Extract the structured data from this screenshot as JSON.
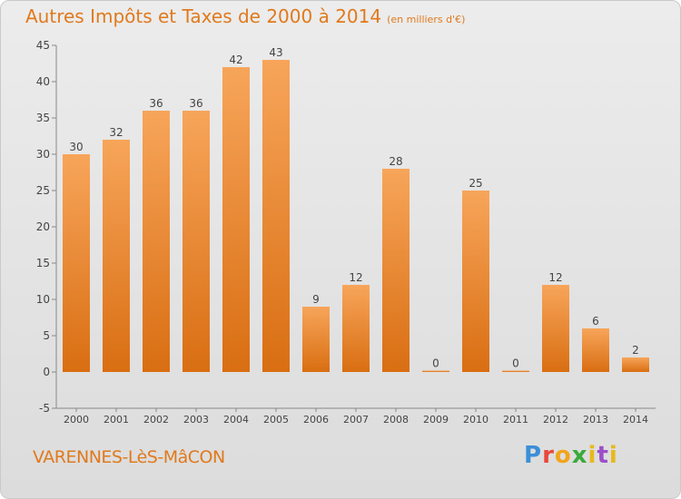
{
  "chart_data": {
    "type": "bar",
    "title": "Autres Impôts et Taxes de 2000 à 2014",
    "subtitle": "(en milliers d'€)",
    "categories": [
      "2000",
      "2001",
      "2002",
      "2003",
      "2004",
      "2005",
      "2006",
      "2007",
      "2008",
      "2009",
      "2010",
      "2011",
      "2012",
      "2013",
      "2014"
    ],
    "values": [
      30,
      32,
      36,
      36,
      42,
      43,
      9,
      12,
      28,
      0,
      25,
      0,
      12,
      6,
      2
    ],
    "ylim": [
      -5,
      45
    ],
    "yticks": [
      -5,
      0,
      5,
      10,
      15,
      20,
      25,
      30,
      35,
      40,
      45
    ],
    "grid": false,
    "bar_color": "#e8832a"
  },
  "footer": {
    "city": "VARENNES-LèS-MâCON",
    "logo": [
      "P",
      "r",
      "o",
      "x",
      "i",
      "t",
      "i"
    ]
  }
}
